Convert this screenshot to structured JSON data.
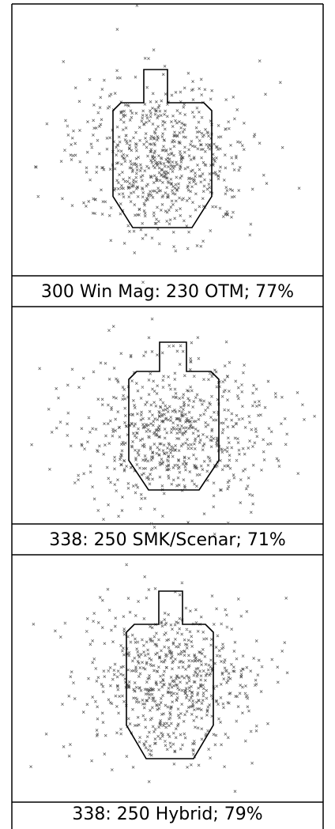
{
  "panels": [
    {
      "caption": "300 Win Mag: 230 OTM; 77%"
    },
    {
      "caption": "338: 250 SMK/Scenar; 71%"
    },
    {
      "caption": "338: 250 Hybrid; 79%"
    }
  ]
}
